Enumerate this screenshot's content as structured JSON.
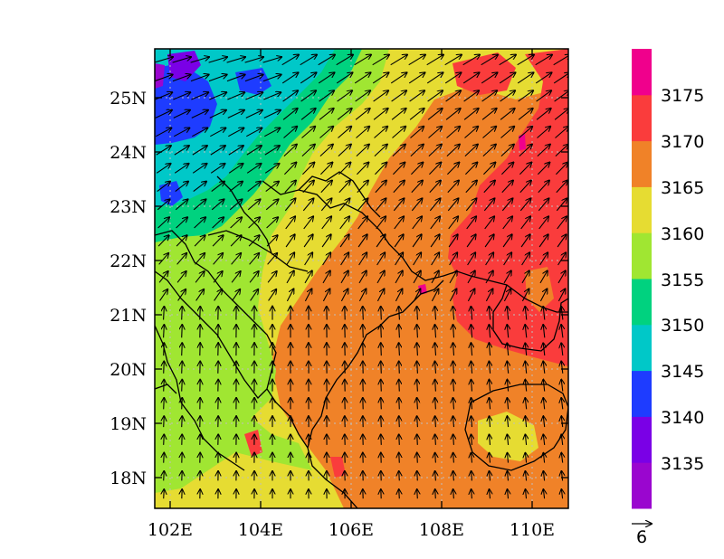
{
  "chart_data": {
    "type": "heatmap",
    "title": "",
    "xlabel": "",
    "ylabel": "",
    "x_ticks": [
      "102E",
      "104E",
      "106E",
      "108E",
      "110E"
    ],
    "y_ticks": [
      "18N",
      "19N",
      "20N",
      "21N",
      "22N",
      "23N",
      "24N",
      "25N"
    ],
    "lon_range": [
      101.7,
      110.8
    ],
    "lat_range": [
      17.4,
      25.9
    ],
    "colorbar": {
      "ticks": [
        "3135",
        "3140",
        "3145",
        "3150",
        "3155",
        "3160",
        "3165",
        "3170",
        "3175"
      ],
      "colors": [
        "#9a06cf",
        "#7a00e6",
        "#1e3cff",
        "#00c8c8",
        "#00d27f",
        "#a0e632",
        "#e6dc32",
        "#f08228",
        "#fa3c3c",
        "#f0008c"
      ]
    },
    "reference_vector": {
      "label": "6"
    },
    "grid": "dotted"
  }
}
